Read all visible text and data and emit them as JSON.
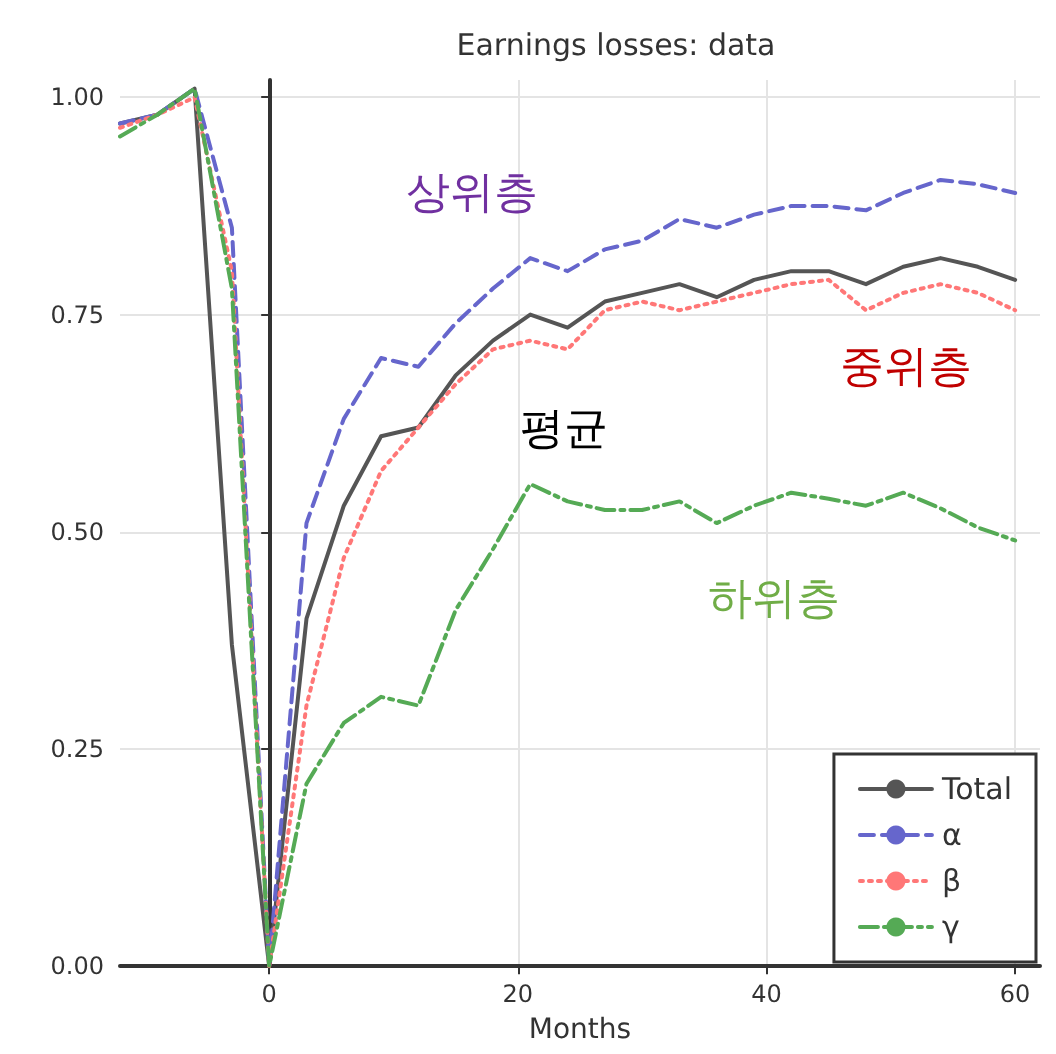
{
  "chart_data": {
    "type": "line",
    "title": "Earnings losses: data",
    "xlabel": "Months",
    "x": [
      -12,
      -9,
      -6,
      -3,
      0,
      3,
      6,
      9,
      12,
      15,
      18,
      21,
      24,
      27,
      30,
      33,
      36,
      39,
      42,
      45,
      48,
      51,
      54,
      57,
      60
    ],
    "series": [
      {
        "name": "Total",
        "color": "#555555",
        "line_style": "solid",
        "values": [
          0.97,
          0.98,
          1.01,
          0.37,
          0,
          0.4,
          0.53,
          0.61,
          0.62,
          0.68,
          0.72,
          0.75,
          0.735,
          0.765,
          0.775,
          0.785,
          0.77,
          0.79,
          0.8,
          0.8,
          0.785,
          0.805,
          0.815,
          0.805,
          0.79
        ]
      },
      {
        "name": "α",
        "color": "#6666cc",
        "line_style": "dashed",
        "values": [
          0.97,
          0.98,
          1.01,
          0.85,
          0,
          0.51,
          0.63,
          0.7,
          0.69,
          0.74,
          0.78,
          0.815,
          0.8,
          0.825,
          0.835,
          0.86,
          0.85,
          0.865,
          0.875,
          0.875,
          0.87,
          0.89,
          0.905,
          0.9,
          0.89
        ]
      },
      {
        "name": "β",
        "color": "#ff7777",
        "line_style": "dotted",
        "values": [
          0.965,
          0.98,
          1.0,
          0.8,
          0,
          0.3,
          0.47,
          0.57,
          0.62,
          0.67,
          0.71,
          0.72,
          0.71,
          0.755,
          0.765,
          0.755,
          0.765,
          0.775,
          0.785,
          0.79,
          0.755,
          0.775,
          0.785,
          0.775,
          0.755
        ]
      },
      {
        "name": "γ",
        "color": "#55aa55",
        "line_style": "dashdot",
        "values": [
          0.955,
          0.98,
          1.01,
          0.78,
          0,
          0.21,
          0.28,
          0.31,
          0.3,
          0.41,
          0.48,
          0.555,
          0.535,
          0.525,
          0.525,
          0.535,
          0.51,
          0.53,
          0.545,
          0.538,
          0.53,
          0.545,
          0.527,
          0.505,
          0.49
        ]
      }
    ],
    "annotations": [
      "상위층",
      "평균",
      "중위층",
      "하위층"
    ],
    "xlim": [
      -12,
      62
    ],
    "ylim": [
      0,
      1.02
    ],
    "xticks": [
      0,
      20,
      40,
      60
    ],
    "yticks": [
      {
        "value": 0,
        "label": "0.00"
      },
      {
        "value": 0.25,
        "label": "0.25"
      },
      {
        "value": 0.5,
        "label": "0.50"
      },
      {
        "value": 0.75,
        "label": "0.75"
      },
      {
        "value": 1,
        "label": "1.00"
      }
    ],
    "grid": true,
    "legend": "bottom right",
    "marker": "none"
  }
}
